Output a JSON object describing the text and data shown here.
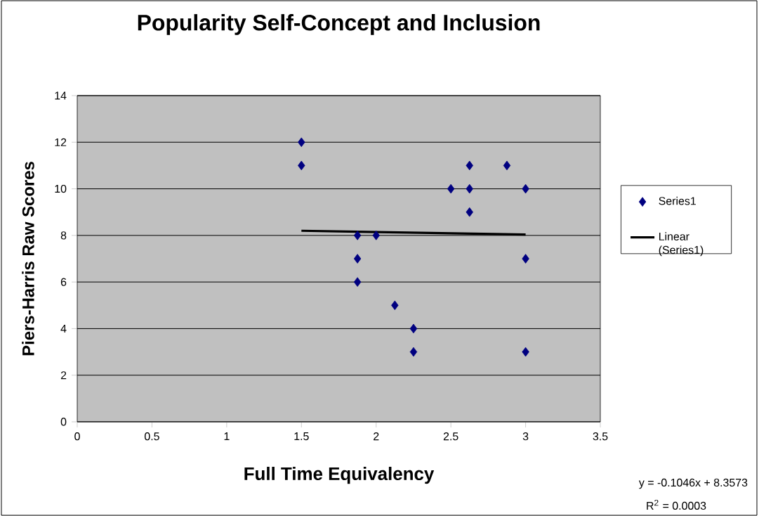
{
  "chart_data": {
    "type": "scatter",
    "title": "Popularity Self-Concept and Inclusion",
    "xlabel": "Full Time Equivalency",
    "ylabel": "Piers-Harris Raw Scores",
    "series": [
      {
        "name": "Series1",
        "marker": "diamond",
        "color": "#000080",
        "x": [
          1.5,
          1.5,
          1.875,
          1.875,
          1.875,
          2,
          2.125,
          2.25,
          2.25,
          2.5,
          2.625,
          2.625,
          2.625,
          2.875,
          3,
          3,
          3
        ],
        "values": [
          12,
          11,
          8,
          7,
          6,
          8,
          5,
          4,
          3,
          10,
          11,
          10,
          9,
          11,
          10,
          7,
          3
        ]
      },
      {
        "name": "Linear (Series1)",
        "type": "line",
        "marker": "none",
        "color": "#000000",
        "x": [
          1.5,
          3
        ],
        "values": [
          8.2,
          8.04
        ]
      }
    ],
    "xlim": [
      0,
      3.5
    ],
    "xticks": [
      0,
      0.5,
      1,
      1.5,
      2,
      2.5,
      3,
      3.5
    ],
    "ylim": [
      0,
      14
    ],
    "yticks": [
      0,
      2,
      4,
      6,
      8,
      10,
      12,
      14
    ],
    "grid": "y",
    "legend": "right",
    "annotations": [
      "y = -0.1046x + 8.3573",
      "R$^{2}$ = 0.0003"
    ]
  }
}
